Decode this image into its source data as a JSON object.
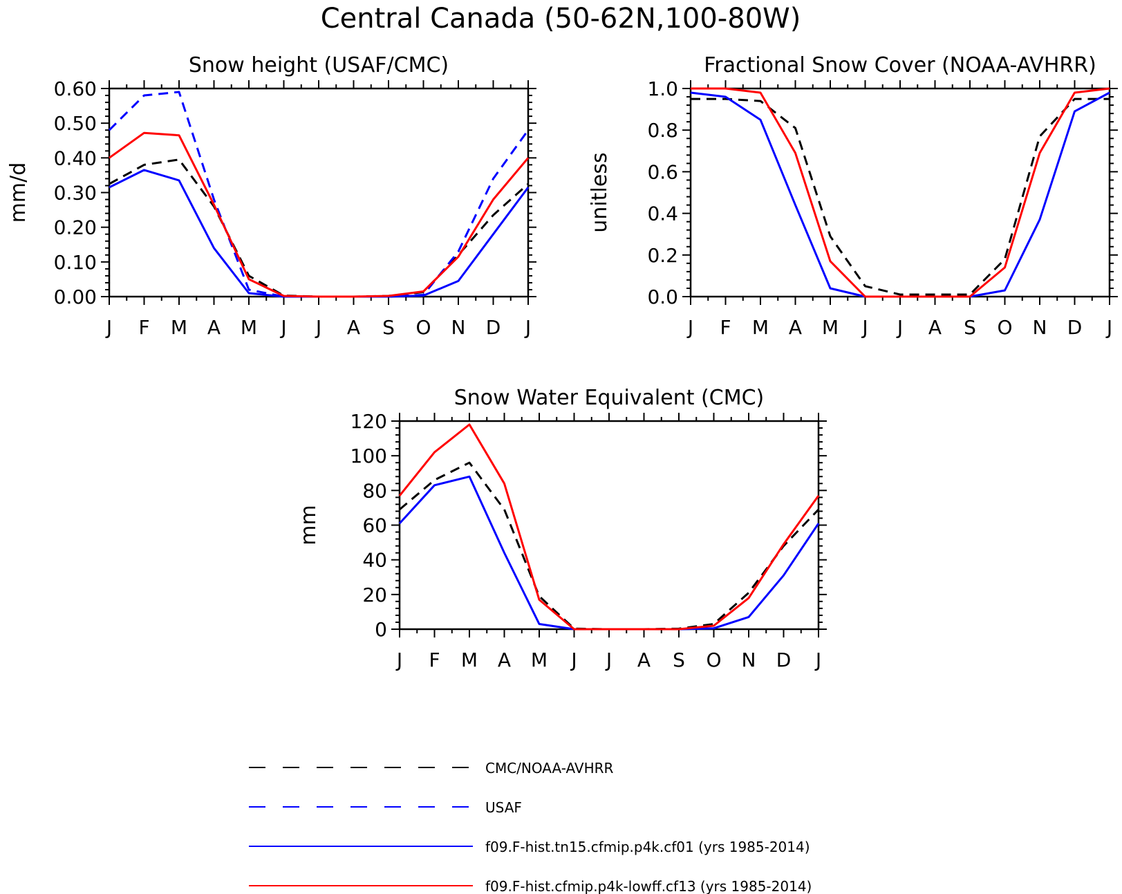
{
  "figure_title": "Central Canada (50-62N,100-80W)",
  "colors": {
    "obs": "#000000",
    "usaf": "#0000ff",
    "cf01": "#0000ff",
    "cf13": "#ff0000"
  },
  "legend": [
    {
      "label": "CMC/NOAA-AVHRR",
      "color": "#000000",
      "dash": true
    },
    {
      "label": "USAF",
      "color": "#0000ff",
      "dash": true
    },
    {
      "label": "f09.F-hist.tn15.cfmip.p4k.cf01 (yrs 1985-2014)",
      "color": "#0000ff",
      "dash": false
    },
    {
      "label": "f09.F-hist.cfmip.p4k-lowff.cf13 (yrs 1985-2014)",
      "color": "#ff0000",
      "dash": false
    }
  ],
  "chart_data": [
    {
      "type": "line",
      "title": "Snow height (USAF/CMC)",
      "xlabel": "",
      "ylabel": "mm/d",
      "categories": [
        "J",
        "F",
        "M",
        "A",
        "M",
        "J",
        "J",
        "A",
        "S",
        "O",
        "N",
        "D",
        "J"
      ],
      "ylim": [
        0,
        0.6
      ],
      "yticks": [
        "0.00",
        "0.10",
        "0.20",
        "0.30",
        "0.40",
        "0.50",
        "0.60"
      ],
      "series": [
        {
          "name": "CMC/NOAA-AVHRR",
          "color": "#000000",
          "dash": true,
          "values": [
            0.325,
            0.38,
            0.395,
            0.26,
            0.06,
            0.003,
            0.0,
            0.0,
            0.002,
            0.013,
            0.12,
            0.235,
            0.325
          ]
        },
        {
          "name": "USAF",
          "color": "#0000ff",
          "dash": true,
          "values": [
            0.48,
            0.58,
            0.59,
            0.28,
            0.02,
            0.0,
            0.0,
            0.0,
            0.0,
            0.005,
            0.13,
            0.34,
            0.48
          ]
        },
        {
          "name": "f09.F-hist.tn15.cfmip.p4k.cf01 (yrs 1985-2014)",
          "color": "#0000ff",
          "dash": false,
          "values": [
            0.315,
            0.365,
            0.335,
            0.14,
            0.01,
            0.0,
            0.0,
            0.0,
            0.0,
            0.003,
            0.045,
            0.18,
            0.315
          ]
        },
        {
          "name": "f09.F-hist.cfmip.p4k-lowff.cf13 (yrs 1985-2014)",
          "color": "#ff0000",
          "dash": false,
          "values": [
            0.4,
            0.472,
            0.465,
            0.265,
            0.05,
            0.002,
            0.0,
            0.0,
            0.002,
            0.015,
            0.115,
            0.28,
            0.4
          ]
        }
      ]
    },
    {
      "type": "line",
      "title": "Fractional Snow Cover (NOAA-AVHRR)",
      "xlabel": "",
      "ylabel": "unitless",
      "categories": [
        "J",
        "F",
        "M",
        "A",
        "M",
        "J",
        "J",
        "A",
        "S",
        "O",
        "N",
        "D",
        "J"
      ],
      "ylim": [
        0,
        1
      ],
      "yticks": [
        "0.0",
        "0.2",
        "0.4",
        "0.6",
        "0.8",
        "1.0"
      ],
      "series": [
        {
          "name": "CMC/NOAA-AVHRR",
          "color": "#000000",
          "dash": true,
          "values": [
            0.95,
            0.95,
            0.94,
            0.81,
            0.29,
            0.05,
            0.01,
            0.01,
            0.01,
            0.18,
            0.77,
            0.95,
            0.95
          ]
        },
        {
          "name": "f09.F-hist.tn15.cfmip.p4k.cf01 (yrs 1985-2014)",
          "color": "#0000ff",
          "dash": false,
          "values": [
            0.98,
            0.96,
            0.85,
            0.44,
            0.04,
            0.0,
            0.0,
            0.0,
            0.0,
            0.03,
            0.37,
            0.89,
            0.98
          ]
        },
        {
          "name": "f09.F-hist.cfmip.p4k-lowff.cf13 (yrs 1985-2014)",
          "color": "#ff0000",
          "dash": false,
          "values": [
            1.0,
            1.0,
            0.98,
            0.69,
            0.17,
            0.0,
            0.0,
            0.0,
            0.0,
            0.14,
            0.69,
            0.98,
            1.0
          ]
        }
      ]
    },
    {
      "type": "line",
      "title": "Snow Water Equivalent (CMC)",
      "xlabel": "",
      "ylabel": "mm",
      "categories": [
        "J",
        "F",
        "M",
        "A",
        "M",
        "J",
        "J",
        "A",
        "S",
        "O",
        "N",
        "D",
        "J"
      ],
      "ylim": [
        0,
        120
      ],
      "yticks": [
        "0",
        "20",
        "40",
        "60",
        "80",
        "100",
        "120"
      ],
      "series": [
        {
          "name": "CMC/NOAA-AVHRR",
          "color": "#000000",
          "dash": true,
          "values": [
            69,
            86,
            96,
            69,
            19,
            0.3,
            0,
            0,
            0.3,
            3,
            21,
            48,
            69
          ]
        },
        {
          "name": "f09.F-hist.tn15.cfmip.p4k.cf01 (yrs 1985-2014)",
          "color": "#0000ff",
          "dash": false,
          "values": [
            61,
            83,
            88,
            44,
            3,
            0,
            0,
            0,
            0,
            0.5,
            7,
            31,
            61
          ]
        },
        {
          "name": "f09.F-hist.cfmip.p4k-lowff.cf13 (yrs 1985-2014)",
          "color": "#ff0000",
          "dash": false,
          "values": [
            77,
            102,
            118,
            84,
            17,
            0,
            0,
            0,
            0,
            2,
            18,
            49,
            77
          ]
        }
      ]
    }
  ]
}
